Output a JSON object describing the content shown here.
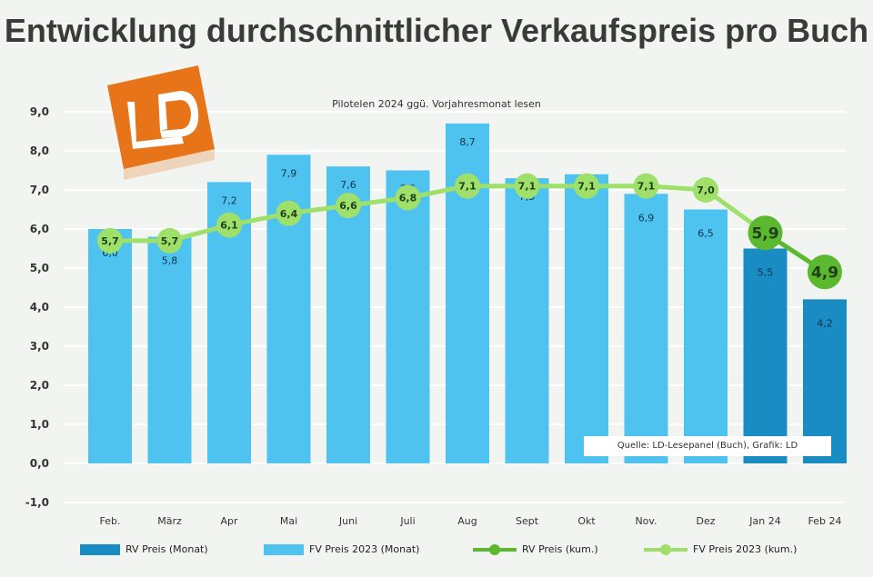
{
  "chart_data": {
    "type": "bar",
    "title": "Entwicklung durchschnittlicher Verkaufspreis pro Buch",
    "subtitle": "Pilotelen 2024 ggü. Vorjahresmonat lesen",
    "categories": [
      "Feb.",
      "März",
      "Apr",
      "Mai",
      "Juni",
      "Juli",
      "Aug",
      "Sept",
      "Okt",
      "Nov.",
      "Dez",
      "Jan 24",
      "Feb 24"
    ],
    "ylim": [
      -1.0,
      9.0
    ],
    "yticks": [
      "-1,0",
      "0,0",
      "1,0",
      "2,0",
      "3,0",
      "4,0",
      "5,0",
      "6,0",
      "7,0",
      "8,0",
      "9,0"
    ],
    "grid": true,
    "legend_position": "bottom",
    "series": [
      {
        "name": "RV Preis (Monat)",
        "kind": "bar",
        "color": "#1a8cc4",
        "values": [
          null,
          null,
          null,
          null,
          null,
          null,
          null,
          null,
          null,
          null,
          null,
          5.5,
          4.2
        ],
        "labels": [
          "",
          "",
          "",
          "",
          "",
          "",
          "",
          "",
          "",
          "",
          "",
          "5,5",
          "4,2"
        ]
      },
      {
        "name": "FV Preis 2023 (Monat)",
        "kind": "bar",
        "color": "#4ec3ef",
        "values": [
          6.0,
          5.8,
          7.2,
          7.9,
          7.6,
          7.5,
          8.7,
          7.3,
          7.4,
          6.9,
          6.5,
          null,
          null
        ],
        "labels": [
          "6,0",
          "5,8",
          "7,2",
          "7,9",
          "7,6",
          "7,5",
          "8,7",
          "7,3",
          "7,4",
          "6,9",
          "6,5",
          "",
          ""
        ]
      },
      {
        "name": "RV Preis (kum.)",
        "kind": "line",
        "color": "#5cb82e",
        "values": [
          null,
          null,
          null,
          null,
          null,
          null,
          null,
          null,
          null,
          null,
          null,
          5.9,
          4.9
        ],
        "labels": [
          "",
          "",
          "",
          "",
          "",
          "",
          "",
          "",
          "",
          "",
          "",
          "5,9",
          "4,9"
        ]
      },
      {
        "name": "FV Preis 2023 (kum.)",
        "kind": "line",
        "color": "#9ee06a",
        "values": [
          5.7,
          5.7,
          6.1,
          6.4,
          6.6,
          6.8,
          7.1,
          7.1,
          7.1,
          7.1,
          7.0,
          null,
          null
        ],
        "labels": [
          "5,7",
          "5,7",
          "6,1",
          "6,4",
          "6,6",
          "6,8",
          "7,1",
          "7,1",
          "7,1",
          "7,1",
          "7,0",
          "",
          ""
        ]
      }
    ],
    "source": "Quelle: LD-Lesepanel (Buch), Grafik: LD"
  },
  "colors": {
    "background": "#f2f4f2",
    "grid": "#ffffff",
    "logo": "#e8741a"
  }
}
